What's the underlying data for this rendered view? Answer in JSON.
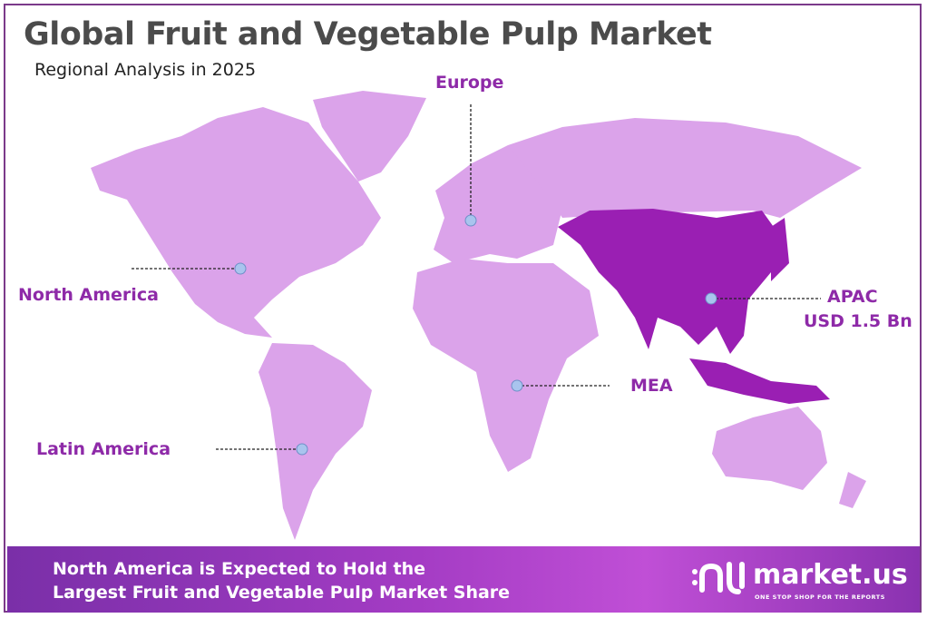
{
  "title": "Global Fruit and Vegetable Pulp Market",
  "subtitle": "Regional Analysis in 2025",
  "colors": {
    "region_default": "#dba3ea",
    "region_highlight": "#9a1fb3",
    "label": "#8e2aa8",
    "marker": "#a9c4ee"
  },
  "regions": {
    "europe": {
      "label": "Europe"
    },
    "north_america": {
      "label": "North America"
    },
    "apac": {
      "label": "APAC",
      "value": "USD 1.5 Bn",
      "highlighted": true
    },
    "mea": {
      "label": "MEA"
    },
    "latin_america": {
      "label": "Latin America"
    }
  },
  "banner": {
    "line1": "North America is Expected to Hold the",
    "line2": "Largest Fruit and Vegetable Pulp Market Share"
  },
  "logo": {
    "name": "market.us",
    "tagline": "ONE STOP SHOP FOR THE REPORTS"
  }
}
